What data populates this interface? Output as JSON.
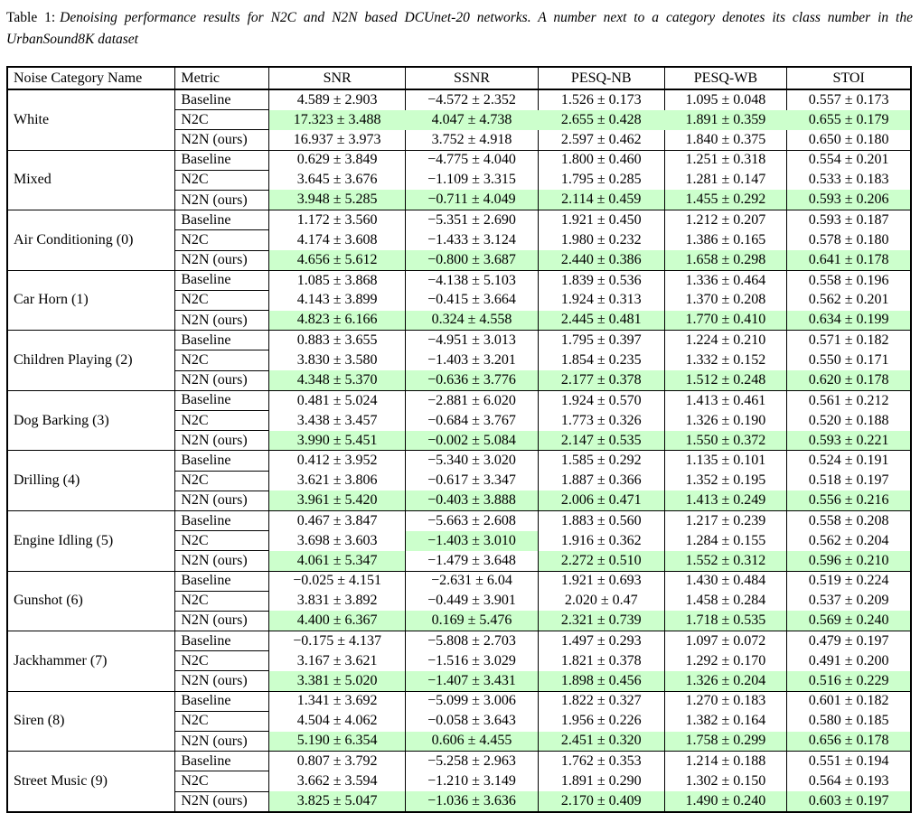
{
  "title": {
    "label": "Table 1:",
    "text": "Denoising performance results for N2C and N2N based DCUnet-20 networks. A number next to a category denotes its class number in the UrbanSound8K dataset"
  },
  "table": {
    "highlight_color": "#ccffcc",
    "headers": [
      "Noise Category Name",
      "Metric",
      "SNR",
      "SSNR",
      "PESQ-NB",
      "PESQ-WB",
      "STOI"
    ],
    "groups": [
      {
        "category": "White",
        "rows": [
          {
            "metric": "Baseline",
            "values": [
              "4.589 ± 2.903",
              "−4.572 ± 2.352",
              "1.526 ± 0.173",
              "1.095 ± 0.048",
              "0.557 ± 0.173"
            ],
            "green": [
              false,
              false,
              false,
              false,
              false
            ]
          },
          {
            "metric": "N2C",
            "band": true,
            "values": [
              "17.323 ± 3.488",
              "4.047 ± 4.738",
              "2.655 ± 0.428",
              "1.891 ± 0.359",
              "0.655 ± 0.179"
            ],
            "green": [
              true,
              true,
              true,
              true,
              true
            ]
          },
          {
            "metric": "N2N (ours)",
            "values": [
              "16.937 ± 3.973",
              "3.752 ± 4.918",
              "2.597 ± 0.462",
              "1.840 ± 0.375",
              "0.650 ± 0.180"
            ],
            "green": [
              false,
              false,
              false,
              false,
              false
            ]
          }
        ]
      },
      {
        "category": "Mixed",
        "rows": [
          {
            "metric": "Baseline",
            "values": [
              "0.629 ± 3.849",
              "−4.775 ± 4.040",
              "1.800 ± 0.460",
              "1.251 ± 0.318",
              "0.554 ± 0.201"
            ],
            "green": [
              false,
              false,
              false,
              false,
              false
            ]
          },
          {
            "metric": "N2C",
            "values": [
              "3.645 ± 3.676",
              "−1.109 ± 3.315",
              "1.795 ± 0.285",
              "1.281 ± 0.147",
              "0.533 ± 0.183"
            ],
            "green": [
              false,
              false,
              false,
              false,
              false
            ]
          },
          {
            "metric": "N2N (ours)",
            "values": [
              "3.948 ± 5.285",
              "−0.711 ± 4.049",
              "2.114 ± 0.459",
              "1.455 ± 0.292",
              "0.593 ± 0.206"
            ],
            "green": [
              true,
              true,
              true,
              true,
              true
            ]
          }
        ]
      },
      {
        "category": "Air Conditioning (0)",
        "rows": [
          {
            "metric": "Baseline",
            "values": [
              "1.172 ± 3.560",
              "−5.351 ± 2.690",
              "1.921 ± 0.450",
              "1.212 ± 0.207",
              "0.593 ± 0.187"
            ],
            "green": [
              false,
              false,
              false,
              false,
              false
            ]
          },
          {
            "metric": "N2C",
            "values": [
              "4.174 ± 3.608",
              "−1.433 ± 3.124",
              "1.980 ± 0.232",
              "1.386 ± 0.165",
              "0.578 ± 0.180"
            ],
            "green": [
              false,
              false,
              false,
              false,
              false
            ]
          },
          {
            "metric": "N2N (ours)",
            "values": [
              "4.656 ± 5.612",
              "−0.800 ± 3.687",
              "2.440 ± 0.386",
              "1.658 ± 0.298",
              "0.641 ± 0.178"
            ],
            "green": [
              true,
              true,
              true,
              true,
              true
            ]
          }
        ]
      },
      {
        "category": "Car Horn (1)",
        "rows": [
          {
            "metric": "Baseline",
            "values": [
              "1.085 ± 3.868",
              "−4.138 ± 5.103",
              "1.839 ± 0.536",
              "1.336 ± 0.464",
              "0.558 ± 0.196"
            ],
            "green": [
              false,
              false,
              false,
              false,
              false
            ]
          },
          {
            "metric": "N2C",
            "values": [
              "4.143 ± 3.899",
              "−0.415 ± 3.664",
              "1.924 ± 0.313",
              "1.370 ± 0.208",
              "0.562 ± 0.201"
            ],
            "green": [
              false,
              false,
              false,
              false,
              false
            ]
          },
          {
            "metric": "N2N (ours)",
            "values": [
              "4.823 ± 6.166",
              "0.324 ± 4.558",
              "2.445 ± 0.481",
              "1.770 ± 0.410",
              "0.634 ± 0.199"
            ],
            "green": [
              true,
              true,
              true,
              true,
              true
            ]
          }
        ]
      },
      {
        "category": "Children Playing (2)",
        "rows": [
          {
            "metric": "Baseline",
            "values": [
              "0.883 ± 3.655",
              "−4.951 ± 3.013",
              "1.795 ± 0.397",
              "1.224 ± 0.210",
              "0.571 ± 0.182"
            ],
            "green": [
              false,
              false,
              false,
              false,
              false
            ]
          },
          {
            "metric": "N2C",
            "values": [
              "3.830 ± 3.580",
              "−1.403 ± 3.201",
              "1.854 ± 0.235",
              "1.332 ± 0.152",
              "0.550 ± 0.171"
            ],
            "green": [
              false,
              false,
              false,
              false,
              false
            ]
          },
          {
            "metric": "N2N (ours)",
            "values": [
              "4.348 ± 5.370",
              "−0.636 ± 3.776",
              "2.177 ± 0.378",
              "1.512 ± 0.248",
              "0.620 ± 0.178"
            ],
            "green": [
              true,
              true,
              true,
              true,
              true
            ]
          }
        ]
      },
      {
        "category": "Dog Barking (3)",
        "rows": [
          {
            "metric": "Baseline",
            "values": [
              "0.481 ± 5.024",
              "−2.881 ± 6.020",
              "1.924 ± 0.570",
              "1.413 ± 0.461",
              "0.561 ± 0.212"
            ],
            "green": [
              false,
              false,
              false,
              false,
              false
            ]
          },
          {
            "metric": "N2C",
            "values": [
              "3.438 ± 3.457",
              "−0.684 ± 3.767",
              "1.773 ± 0.326",
              "1.326 ± 0.190",
              "0.520 ± 0.188"
            ],
            "green": [
              false,
              false,
              false,
              false,
              false
            ]
          },
          {
            "metric": "N2N (ours)",
            "values": [
              "3.990 ± 5.451",
              "−0.002 ± 5.084",
              "2.147 ± 0.535",
              "1.550 ± 0.372",
              "0.593 ± 0.221"
            ],
            "green": [
              true,
              true,
              true,
              true,
              true
            ]
          }
        ]
      },
      {
        "category": "Drilling (4)",
        "rows": [
          {
            "metric": "Baseline",
            "values": [
              "0.412 ± 3.952",
              "−5.340 ± 3.020",
              "1.585 ± 0.292",
              "1.135 ± 0.101",
              "0.524 ± 0.191"
            ],
            "green": [
              false,
              false,
              false,
              false,
              false
            ]
          },
          {
            "metric": "N2C",
            "values": [
              "3.621 ± 3.806",
              "−0.617 ± 3.347",
              "1.887 ± 0.366",
              "1.352 ± 0.195",
              "0.518 ± 0.197"
            ],
            "green": [
              false,
              false,
              false,
              false,
              false
            ]
          },
          {
            "metric": "N2N (ours)",
            "values": [
              "3.961 ± 5.420",
              "−0.403 ± 3.888",
              "2.006 ± 0.471",
              "1.413 ± 0.249",
              "0.556 ± 0.216"
            ],
            "green": [
              true,
              true,
              true,
              true,
              true
            ]
          }
        ]
      },
      {
        "category": "Engine Idling (5)",
        "rows": [
          {
            "metric": "Baseline",
            "values": [
              "0.467 ± 3.847",
              "−5.663 ± 2.608",
              "1.883 ± 0.560",
              "1.217 ± 0.239",
              "0.558 ± 0.208"
            ],
            "green": [
              false,
              false,
              false,
              false,
              false
            ]
          },
          {
            "metric": "N2C",
            "values": [
              "3.698 ± 3.603",
              "−1.403 ± 3.010",
              "1.916 ± 0.362",
              "1.284 ± 0.155",
              "0.562 ± 0.204"
            ],
            "green": [
              false,
              true,
              false,
              false,
              false
            ]
          },
          {
            "metric": "N2N (ours)",
            "values": [
              "4.061 ± 5.347",
              "−1.479 ± 3.648",
              "2.272 ± 0.510",
              "1.552 ± 0.312",
              "0.596 ± 0.210"
            ],
            "green": [
              true,
              false,
              true,
              true,
              true
            ]
          }
        ]
      },
      {
        "category": "Gunshot (6)",
        "rows": [
          {
            "metric": "Baseline",
            "values": [
              "−0.025 ± 4.151",
              "−2.631 ± 6.04",
              "1.921 ± 0.693",
              "1.430 ± 0.484",
              "0.519 ± 0.224"
            ],
            "green": [
              false,
              false,
              false,
              false,
              false
            ]
          },
          {
            "metric": "N2C",
            "values": [
              "3.831 ± 3.892",
              "−0.449 ± 3.901",
              "2.020 ± 0.47",
              "1.458 ± 0.284",
              "0.537 ± 0.209"
            ],
            "green": [
              false,
              false,
              false,
              false,
              false
            ]
          },
          {
            "metric": "N2N (ours)",
            "values": [
              "4.400 ± 6.367",
              "0.169 ± 5.476",
              "2.321 ± 0.739",
              "1.718 ± 0.535",
              "0.569 ± 0.240"
            ],
            "green": [
              true,
              true,
              true,
              true,
              true
            ]
          }
        ]
      },
      {
        "category": "Jackhammer (7)",
        "rows": [
          {
            "metric": "Baseline",
            "values": [
              "−0.175 ± 4.137",
              "−5.808 ± 2.703",
              "1.497 ± 0.293",
              "1.097 ± 0.072",
              "0.479 ± 0.197"
            ],
            "green": [
              false,
              false,
              false,
              false,
              false
            ]
          },
          {
            "metric": "N2C",
            "values": [
              "3.167 ± 3.621",
              "−1.516 ± 3.029",
              "1.821 ± 0.378",
              "1.292 ± 0.170",
              "0.491 ± 0.200"
            ],
            "green": [
              false,
              false,
              false,
              false,
              false
            ]
          },
          {
            "metric": "N2N (ours)",
            "values": [
              "3.381 ± 5.020",
              "−1.407 ± 3.431",
              "1.898 ± 0.456",
              "1.326 ± 0.204",
              "0.516 ± 0.229"
            ],
            "green": [
              true,
              true,
              true,
              true,
              true
            ]
          }
        ]
      },
      {
        "category": "Siren (8)",
        "rows": [
          {
            "metric": "Baseline",
            "values": [
              "1.341 ± 3.692",
              "−5.099 ± 3.006",
              "1.822 ± 0.327",
              "1.270 ± 0.183",
              "0.601 ± 0.182"
            ],
            "green": [
              false,
              false,
              false,
              false,
              false
            ]
          },
          {
            "metric": "N2C",
            "values": [
              "4.504 ± 4.062",
              "−0.058 ± 3.643",
              "1.956 ± 0.226",
              "1.382 ± 0.164",
              "0.580 ± 0.185"
            ],
            "green": [
              false,
              false,
              false,
              false,
              false
            ]
          },
          {
            "metric": "N2N (ours)",
            "values": [
              "5.190 ± 6.354",
              "0.606 ± 4.455",
              "2.451 ± 0.320",
              "1.758 ± 0.299",
              "0.656 ± 0.178"
            ],
            "green": [
              true,
              true,
              true,
              true,
              true
            ]
          }
        ]
      },
      {
        "category": "Street Music (9)",
        "rows": [
          {
            "metric": "Baseline",
            "values": [
              "0.807 ± 3.792",
              "−5.258 ± 2.963",
              "1.762 ± 0.353",
              "1.214 ± 0.188",
              "0.551 ± 0.194"
            ],
            "green": [
              false,
              false,
              false,
              false,
              false
            ]
          },
          {
            "metric": "N2C",
            "values": [
              "3.662 ± 3.594",
              "−1.210 ± 3.149",
              "1.891 ± 0.290",
              "1.302 ± 0.150",
              "0.564 ± 0.193"
            ],
            "green": [
              false,
              false,
              false,
              false,
              false
            ]
          },
          {
            "metric": "N2N (ours)",
            "values": [
              "3.825 ± 5.047",
              "−1.036 ± 3.636",
              "2.170 ± 0.409",
              "1.490 ± 0.240",
              "0.603 ± 0.197"
            ],
            "green": [
              true,
              true,
              true,
              true,
              true
            ]
          }
        ]
      }
    ]
  }
}
